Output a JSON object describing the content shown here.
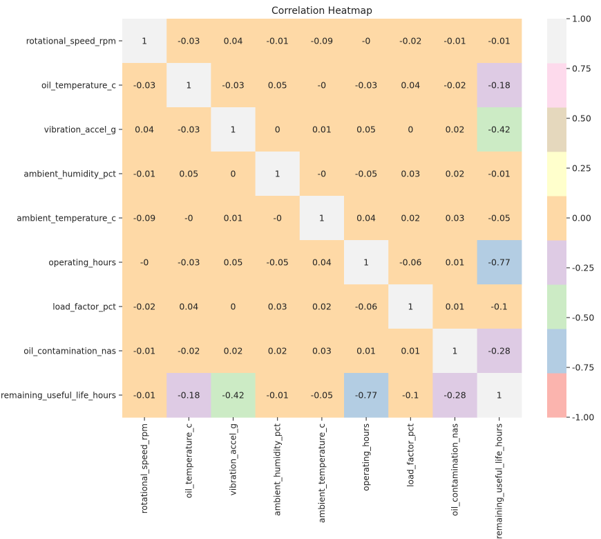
{
  "chart_data": {
    "type": "heatmap",
    "title": "Correlation Heatmap",
    "xlabel": "",
    "ylabel": "",
    "rows": [
      "rotational_speed_rpm",
      "oil_temperature_c",
      "vibration_accel_g",
      "ambient_humidity_pct",
      "ambient_temperature_c",
      "operating_hours",
      "load_factor_pct",
      "oil_contamination_nas",
      "remaining_useful_life_hours"
    ],
    "columns": [
      "rotational_speed_rpm",
      "oil_temperature_c",
      "vibration_accel_g",
      "ambient_humidity_pct",
      "ambient_temperature_c",
      "operating_hours",
      "load_factor_pct",
      "oil_contamination_nas",
      "remaining_useful_life_hours"
    ],
    "values": [
      [
        1,
        -0.03,
        0.04,
        -0.01,
        -0.09,
        0,
        -0.02,
        -0.01,
        -0.01
      ],
      [
        -0.03,
        1,
        -0.03,
        0.05,
        0,
        -0.03,
        0.04,
        -0.02,
        -0.18
      ],
      [
        0.04,
        -0.03,
        1,
        0,
        0.01,
        0.05,
        0,
        0.02,
        -0.42
      ],
      [
        -0.01,
        0.05,
        0,
        1,
        0,
        -0.05,
        0.03,
        0.02,
        -0.01
      ],
      [
        -0.09,
        0,
        0.01,
        0,
        1,
        0.04,
        0.02,
        0.03,
        -0.05
      ],
      [
        0,
        -0.03,
        0.05,
        -0.05,
        0.04,
        1,
        -0.06,
        0.01,
        -0.77
      ],
      [
        -0.02,
        0.04,
        0,
        0.03,
        0.02,
        -0.06,
        1,
        0.01,
        -0.1
      ],
      [
        -0.01,
        -0.02,
        0.02,
        0.02,
        0.03,
        0.01,
        0.01,
        1,
        -0.28
      ],
      [
        -0.01,
        -0.18,
        -0.42,
        -0.01,
        -0.05,
        -0.77,
        -0.1,
        -0.28,
        1
      ]
    ],
    "annotations": [
      [
        "1",
        "-0.03",
        "0.04",
        "-0.01",
        "-0.09",
        "-0",
        "-0.02",
        "-0.01",
        "-0.01"
      ],
      [
        "-0.03",
        "1",
        "-0.03",
        "0.05",
        "-0",
        "-0.03",
        "0.04",
        "-0.02",
        "-0.18"
      ],
      [
        "0.04",
        "-0.03",
        "1",
        "0",
        "0.01",
        "0.05",
        "0",
        "0.02",
        "-0.42"
      ],
      [
        "-0.01",
        "0.05",
        "0",
        "1",
        "-0",
        "-0.05",
        "0.03",
        "0.02",
        "-0.01"
      ],
      [
        "-0.09",
        "-0",
        "0.01",
        "-0",
        "1",
        "0.04",
        "0.02",
        "0.03",
        "-0.05"
      ],
      [
        "-0",
        "-0.03",
        "0.05",
        "-0.05",
        "0.04",
        "1",
        "-0.06",
        "0.01",
        "-0.77"
      ],
      [
        "-0.02",
        "0.04",
        "0",
        "0.03",
        "0.02",
        "-0.06",
        "1",
        "0.01",
        "-0.1"
      ],
      [
        "-0.01",
        "-0.02",
        "0.02",
        "0.02",
        "0.03",
        "0.01",
        "0.01",
        "1",
        "-0.28"
      ],
      [
        "-0.01",
        "-0.18",
        "-0.42",
        "-0.01",
        "-0.05",
        "-0.77",
        "-0.1",
        "-0.28",
        "1"
      ]
    ],
    "vmin": -1.0,
    "vmax": 1.0,
    "colormap": [
      "#fbb4ae",
      "#b3cde3",
      "#ccebc5",
      "#decbe4",
      "#fed9a6",
      "#ffffcc",
      "#e5d8bd",
      "#fddaec",
      "#f2f2f2"
    ],
    "colorbar_ticks": [
      "1.00",
      "0.75",
      "0.50",
      "0.25",
      "0.00",
      "-0.25",
      "-0.50",
      "-0.75",
      "-1.00"
    ],
    "colorbar_values": [
      1.0,
      0.75,
      0.5,
      0.25,
      0.0,
      -0.25,
      -0.5,
      -0.75,
      -1.0
    ],
    "grid": false,
    "legend": "colorbar-right"
  }
}
